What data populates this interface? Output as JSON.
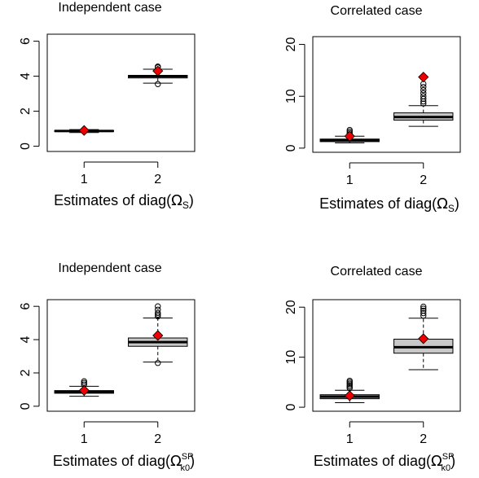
{
  "chart_data": [
    {
      "type": "box",
      "title": "Independent case",
      "xlabel": "Estimates of diag(Ω_S)",
      "xlabel_main": "Estimates of diag",
      "xlabel_symbol": "Ω",
      "xlabel_sub": "S",
      "xlabel_sup": "",
      "categories": [
        "1",
        "2"
      ],
      "ylim": [
        -0.3,
        6.4
      ],
      "yticks": [
        0,
        2,
        4,
        6
      ],
      "boxes": [
        {
          "whislo": 0.78,
          "q1": 0.84,
          "med": 0.87,
          "q3": 0.9,
          "whishi": 0.95,
          "fliers": [],
          "mean": 0.9
        },
        {
          "whislo": 3.6,
          "q1": 3.9,
          "med": 4.0,
          "q3": 4.05,
          "whishi": 4.4,
          "fliers": [
            3.55,
            4.5,
            4.55
          ],
          "mean": 4.3
        }
      ]
    },
    {
      "type": "box",
      "title": "Correlated case",
      "xlabel": "Estimates of diag(Ω_S)",
      "xlabel_main": "Estimates of diag",
      "xlabel_symbol": "Ω",
      "xlabel_sub": "S",
      "xlabel_sup": "",
      "categories": [
        "1",
        "2"
      ],
      "ylim": [
        -0.8,
        21.5
      ],
      "yticks": [
        0,
        10,
        20
      ],
      "boxes": [
        {
          "whislo": 1.0,
          "q1": 1.25,
          "med": 1.5,
          "q3": 1.75,
          "whishi": 2.3,
          "fliers": [
            2.6,
            2.9,
            3.2,
            3.5
          ],
          "mean": 2.3
        },
        {
          "whislo": 4.2,
          "q1": 5.4,
          "med": 6.0,
          "q3": 6.8,
          "whishi": 8.2,
          "fliers": [
            8.6,
            9.0,
            9.5,
            10.0,
            10.6,
            11.2,
            11.8,
            12.4
          ],
          "mean": 13.7
        }
      ]
    },
    {
      "type": "box",
      "title": "Independent case",
      "xlabel": "Estimates of diag(Ω_k0^SP)",
      "xlabel_main": "Estimates of diag",
      "xlabel_symbol": "Ω",
      "xlabel_sub": "k0",
      "xlabel_sup": "SP",
      "categories": [
        "1",
        "2"
      ],
      "ylim": [
        -0.3,
        6.4
      ],
      "yticks": [
        0,
        2,
        4,
        6
      ],
      "boxes": [
        {
          "whislo": 0.6,
          "q1": 0.78,
          "med": 0.86,
          "q3": 0.94,
          "whishi": 1.2,
          "fliers": [
            1.3,
            1.4,
            1.5
          ],
          "mean": 0.95
        },
        {
          "whislo": 2.65,
          "q1": 3.6,
          "med": 3.85,
          "q3": 4.1,
          "whishi": 5.3,
          "fliers": [
            2.6,
            5.4,
            5.5,
            5.6,
            5.8,
            6.0
          ],
          "mean": 4.25
        }
      ]
    },
    {
      "type": "box",
      "title": "Correlated case",
      "xlabel": "Estimates of diag(Ω_k0^SP)",
      "xlabel_main": "Estimates of diag",
      "xlabel_symbol": "Ω",
      "xlabel_sub": "k0",
      "xlabel_sup": "SP",
      "categories": [
        "1",
        "2"
      ],
      "ylim": [
        -0.8,
        21.5
      ],
      "yticks": [
        0,
        10,
        20
      ],
      "boxes": [
        {
          "whislo": 0.9,
          "q1": 1.7,
          "med": 2.1,
          "q3": 2.5,
          "whishi": 3.4,
          "fliers": [
            3.8,
            4.1,
            4.4,
            4.7,
            5.0,
            5.3
          ],
          "mean": 2.3
        },
        {
          "whislo": 7.5,
          "q1": 10.8,
          "med": 12.0,
          "q3": 13.6,
          "whishi": 17.8,
          "fliers": [
            18.3,
            18.8,
            19.3,
            19.7,
            20.1
          ],
          "mean": 13.7
        }
      ]
    }
  ],
  "colors": {
    "box_fill": "#c8c8c8",
    "mean_marker": "#ee0000",
    "mean_marker_edge": "#000000",
    "frame": "#000000"
  }
}
